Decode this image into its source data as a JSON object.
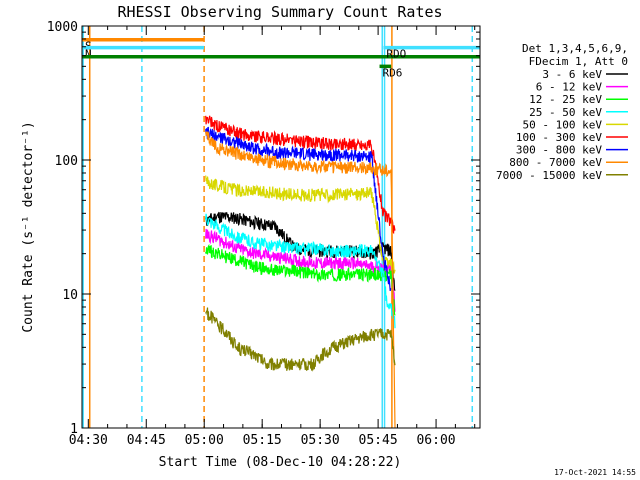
{
  "chart_data": {
    "type": "line",
    "title": "RHESSI Observing Summary Count Rates",
    "xlabel": "Start Time (08-Dec-10 04:28:22)",
    "ylabel": "Count Rate (s⁻¹ detector⁻¹)",
    "x_units": "minutes after 04:28:22",
    "xlim": [
      0,
      103
    ],
    "ylim": [
      1,
      1000
    ],
    "y_scale": "log",
    "x_ticks": [
      {
        "t": 1.63,
        "label": "04:30"
      },
      {
        "t": 16.63,
        "label": "04:45"
      },
      {
        "t": 31.63,
        "label": "05:00"
      },
      {
        "t": 46.63,
        "label": "05:15"
      },
      {
        "t": 61.63,
        "label": "05:30"
      },
      {
        "t": 76.63,
        "label": "05:45"
      },
      {
        "t": 91.63,
        "label": "06:00"
      }
    ],
    "y_ticks": [
      {
        "v": 1,
        "label": "1"
      },
      {
        "v": 10,
        "label": "10"
      },
      {
        "v": 100,
        "label": "100"
      },
      {
        "v": 1000,
        "label": "1000"
      }
    ],
    "legend_header": [
      "Det 1,3,4,5,6,9,",
      "FDecim 1, Att 0"
    ],
    "legend_position": "right",
    "series": [
      {
        "name": "3 - 6 keV",
        "color": "#000000",
        "points": [
          [
            32,
            35
          ],
          [
            35,
            38
          ],
          [
            40,
            37
          ],
          [
            45,
            34
          ],
          [
            50,
            32
          ],
          [
            55,
            22
          ],
          [
            60,
            21
          ],
          [
            65,
            21
          ],
          [
            70,
            21
          ],
          [
            75,
            20
          ],
          [
            78,
            22
          ],
          [
            80,
            21
          ],
          [
            81,
            10
          ]
        ]
      },
      {
        "name": "6 - 12 keV",
        "color": "#ff00ff",
        "points": [
          [
            32,
            28
          ],
          [
            35,
            26
          ],
          [
            40,
            22
          ],
          [
            45,
            20
          ],
          [
            50,
            19
          ],
          [
            55,
            18
          ],
          [
            60,
            17
          ],
          [
            65,
            17
          ],
          [
            70,
            17
          ],
          [
            75,
            16
          ],
          [
            78,
            16
          ],
          [
            80,
            15.5
          ],
          [
            81,
            8
          ]
        ]
      },
      {
        "name": "12 - 25 keV",
        "color": "#00ff00",
        "points": [
          [
            32,
            22
          ],
          [
            35,
            20
          ],
          [
            40,
            18
          ],
          [
            45,
            16
          ],
          [
            50,
            15
          ],
          [
            55,
            15
          ],
          [
            60,
            14
          ],
          [
            65,
            14
          ],
          [
            70,
            14
          ],
          [
            75,
            14
          ],
          [
            78,
            14
          ],
          [
            80,
            14
          ],
          [
            81,
            7
          ]
        ]
      },
      {
        "name": "25 - 50 keV",
        "color": "#00ffff",
        "points": [
          [
            32,
            38
          ],
          [
            35,
            32
          ],
          [
            40,
            27
          ],
          [
            45,
            24
          ],
          [
            50,
            23
          ],
          [
            55,
            22
          ],
          [
            60,
            22
          ],
          [
            65,
            21
          ],
          [
            70,
            21
          ],
          [
            75,
            21
          ],
          [
            78,
            14
          ],
          [
            79,
            8
          ],
          [
            80,
            8
          ],
          [
            81,
            6
          ]
        ]
      },
      {
        "name": "50 - 100 keV",
        "color": "#d8d800",
        "points": [
          [
            32,
            70
          ],
          [
            35,
            65
          ],
          [
            40,
            60
          ],
          [
            45,
            58
          ],
          [
            50,
            57
          ],
          [
            55,
            55
          ],
          [
            60,
            55
          ],
          [
            65,
            55
          ],
          [
            70,
            56
          ],
          [
            75,
            57
          ],
          [
            78,
            17
          ],
          [
            80,
            17
          ],
          [
            81,
            15
          ]
        ]
      },
      {
        "name": "100 - 300 keV",
        "color": "#ff0000",
        "points": [
          [
            32,
            200
          ],
          [
            35,
            180
          ],
          [
            40,
            160
          ],
          [
            45,
            150
          ],
          [
            50,
            145
          ],
          [
            55,
            140
          ],
          [
            60,
            135
          ],
          [
            65,
            132
          ],
          [
            70,
            132
          ],
          [
            75,
            128
          ],
          [
            78,
            40
          ],
          [
            80,
            35
          ],
          [
            81,
            28
          ]
        ]
      },
      {
        "name": "300 - 800 keV",
        "color": "#0000ff",
        "points": [
          [
            32,
            160
          ],
          [
            35,
            150
          ],
          [
            40,
            135
          ],
          [
            45,
            122
          ],
          [
            50,
            115
          ],
          [
            55,
            112
          ],
          [
            60,
            110
          ],
          [
            65,
            110
          ],
          [
            70,
            108
          ],
          [
            75,
            105
          ],
          [
            78,
            18
          ],
          [
            79,
            15
          ],
          [
            80,
            10
          ]
        ]
      },
      {
        "name": "800 - 7000 keV",
        "color": "#ff8800",
        "points": [
          [
            32,
            150
          ],
          [
            35,
            125
          ],
          [
            40,
            112
          ],
          [
            45,
            102
          ],
          [
            50,
            97
          ],
          [
            55,
            93
          ],
          [
            60,
            90
          ],
          [
            65,
            89
          ],
          [
            70,
            88
          ],
          [
            75,
            87
          ],
          [
            78,
            85
          ],
          [
            80,
            85
          ],
          [
            81,
            1
          ]
        ]
      },
      {
        "name": "7000 - 15000 keV",
        "color": "#808000",
        "points": [
          [
            32,
            7.5
          ],
          [
            35,
            6
          ],
          [
            38,
            5
          ],
          [
            40,
            4
          ],
          [
            45,
            3.5
          ],
          [
            48,
            3
          ],
          [
            55,
            3
          ],
          [
            60,
            3
          ],
          [
            62,
            3.5
          ],
          [
            65,
            4
          ],
          [
            70,
            4.5
          ],
          [
            75,
            5
          ],
          [
            78,
            5
          ],
          [
            80,
            5
          ],
          [
            81,
            3
          ]
        ]
      }
    ],
    "state_bars": [
      {
        "label": "S",
        "color": "#ff8800",
        "t_start": 0,
        "t_end": 31.6,
        "v": 790
      },
      {
        "label": "N",
        "color": "#40e0ff",
        "t_start": 0,
        "t_end": 31.6,
        "v": 690
      },
      {
        "label": "",
        "color": "#008000",
        "t_start": 0,
        "t_end": 103,
        "v": 590
      },
      {
        "label": "RD6",
        "color": "#008000",
        "t_start": 77,
        "t_end": 80,
        "v": 500
      },
      {
        "label": "RDO",
        "color": "#40e0ff",
        "t_start": 78,
        "t_end": 103,
        "v": 690
      }
    ],
    "vertical_markers": [
      {
        "t": 0.3,
        "color": "#40e0ff",
        "style": "solid"
      },
      {
        "t": 2.0,
        "color": "#ff8800",
        "style": "solid"
      },
      {
        "t": 15.5,
        "color": "#40e0ff",
        "style": "dashed"
      },
      {
        "t": 31.6,
        "color": "#ff8800",
        "style": "dashed"
      },
      {
        "t": 77.7,
        "color": "#40e0ff",
        "style": "solid"
      },
      {
        "t": 78.3,
        "color": "#40e0ff",
        "style": "solid"
      },
      {
        "t": 80.2,
        "color": "#ff8800",
        "style": "solid"
      },
      {
        "t": 101.0,
        "color": "#40e0ff",
        "style": "dashed"
      }
    ]
  },
  "footer": {
    "timestamp": "17-Oct-2021 14:55"
  }
}
